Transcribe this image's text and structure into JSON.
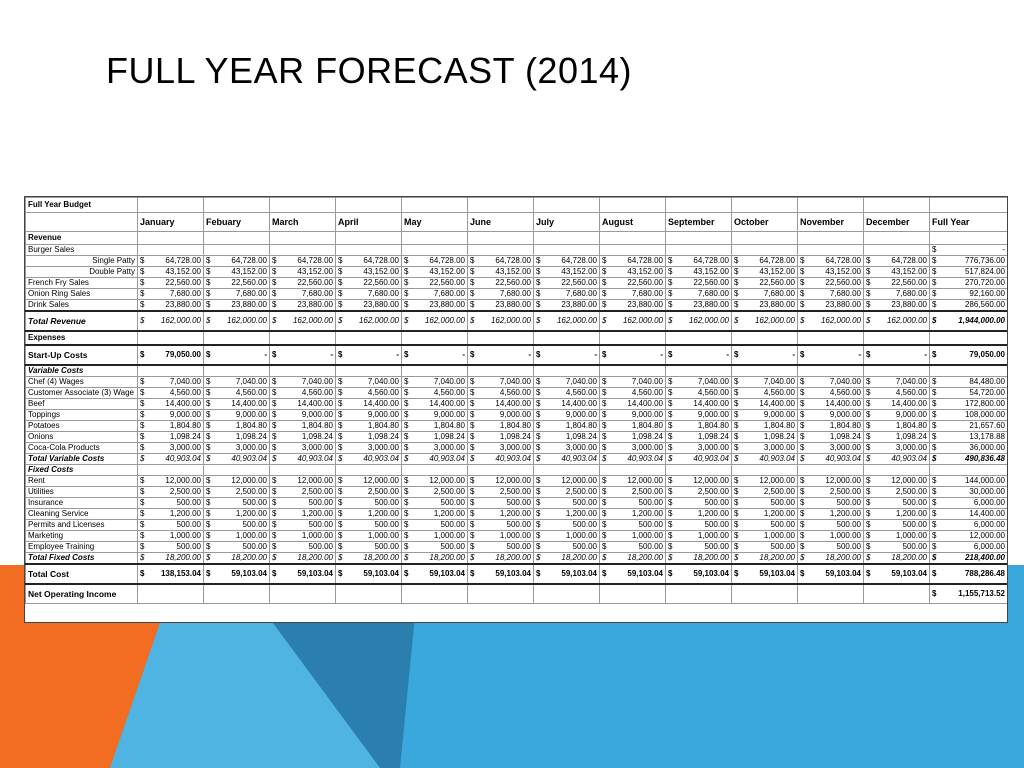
{
  "slide": {
    "title": "FULL YEAR FORECAST (2014)"
  },
  "sheet": {
    "title": "Full Year Budget",
    "months": [
      "January",
      "Febuary",
      "March",
      "April",
      "May",
      "June",
      "July",
      "August",
      "September",
      "October",
      "November",
      "December"
    ],
    "full_year_label": "Full Year",
    "currency_symbol": "$",
    "rows": [
      {
        "label": "Revenue",
        "kind": "section"
      },
      {
        "label": "Burger Sales",
        "kind": "plain",
        "months": [
          "",
          "",
          "",
          "",
          "",
          "",
          "",
          "",
          "",
          "",
          "",
          ""
        ],
        "full_year": "-"
      },
      {
        "label": "Single Patty",
        "kind": "plain",
        "align": "right",
        "months": [
          "64,728.00",
          "64,728.00",
          "64,728.00",
          "64,728.00",
          "64,728.00",
          "64,728.00",
          "64,728.00",
          "64,728.00",
          "64,728.00",
          "64,728.00",
          "64,728.00",
          "64,728.00"
        ],
        "full_year": "776,736.00"
      },
      {
        "label": "Double Patty",
        "kind": "plain",
        "align": "right",
        "months": [
          "43,152.00",
          "43,152.00",
          "43,152.00",
          "43,152.00",
          "43,152.00",
          "43,152.00",
          "43,152.00",
          "43,152.00",
          "43,152.00",
          "43,152.00",
          "43,152.00",
          "43,152.00"
        ],
        "full_year": "517,824.00"
      },
      {
        "label": "French Fry Sales",
        "kind": "plain",
        "months": [
          "22,560.00",
          "22,560.00",
          "22,560.00",
          "22,560.00",
          "22,560.00",
          "22,560.00",
          "22,560.00",
          "22,560.00",
          "22,560.00",
          "22,560.00",
          "22,560.00",
          "22,560.00"
        ],
        "full_year": "270,720.00"
      },
      {
        "label": "Onion Ring Sales",
        "kind": "plain",
        "months": [
          "7,680.00",
          "7,680.00",
          "7,680.00",
          "7,680.00",
          "7,680.00",
          "7,680.00",
          "7,680.00",
          "7,680.00",
          "7,680.00",
          "7,680.00",
          "7,680.00",
          "7,680.00"
        ],
        "full_year": "92,160.00"
      },
      {
        "label": "Drink Sales",
        "kind": "plain",
        "months": [
          "23,880.00",
          "23,880.00",
          "23,880.00",
          "23,880.00",
          "23,880.00",
          "23,880.00",
          "23,880.00",
          "23,880.00",
          "23,880.00",
          "23,880.00",
          "23,880.00",
          "23,880.00"
        ],
        "full_year": "286,560.00"
      },
      {
        "label": "Total Revenue",
        "kind": "italic-total",
        "months": [
          "162,000.00",
          "162,000.00",
          "162,000.00",
          "162,000.00",
          "162,000.00",
          "162,000.00",
          "162,000.00",
          "162,000.00",
          "162,000.00",
          "162,000.00",
          "162,000.00",
          "162,000.00"
        ],
        "full_year": "1,944,000.00"
      },
      {
        "label": "Expenses",
        "kind": "section"
      },
      {
        "label": "Start-Up Costs",
        "kind": "startup",
        "months": [
          "79,050.00",
          "-",
          "-",
          "-",
          "-",
          "-",
          "-",
          "-",
          "-",
          "-",
          "-",
          "-"
        ],
        "full_year": "79,050.00"
      },
      {
        "label": "Variable Costs",
        "kind": "subhead"
      },
      {
        "label": "Chef (4) Wages",
        "kind": "plain",
        "months": [
          "7,040.00",
          "7,040.00",
          "7,040.00",
          "7,040.00",
          "7,040.00",
          "7,040.00",
          "7,040.00",
          "7,040.00",
          "7,040.00",
          "7,040.00",
          "7,040.00",
          "7,040.00"
        ],
        "full_year": "84,480.00"
      },
      {
        "label": "Customer Associate (3) Wage",
        "kind": "plain",
        "months": [
          "4,560.00",
          "4,560.00",
          "4,560.00",
          "4,560.00",
          "4,560.00",
          "4,560.00",
          "4,560.00",
          "4,560.00",
          "4,560.00",
          "4,560.00",
          "4,560.00",
          "4,560.00"
        ],
        "full_year": "54,720.00"
      },
      {
        "label": "Beef",
        "kind": "plain",
        "months": [
          "14,400.00",
          "14,400.00",
          "14,400.00",
          "14,400.00",
          "14,400.00",
          "14,400.00",
          "14,400.00",
          "14,400.00",
          "14,400.00",
          "14,400.00",
          "14,400.00",
          "14,400.00"
        ],
        "full_year": "172,800.00"
      },
      {
        "label": "Toppings",
        "kind": "plain",
        "months": [
          "9,000.00",
          "9,000.00",
          "9,000.00",
          "9,000.00",
          "9,000.00",
          "9,000.00",
          "9,000.00",
          "9,000.00",
          "9,000.00",
          "9,000.00",
          "9,000.00",
          "9,000.00"
        ],
        "full_year": "108,000.00"
      },
      {
        "label": "Potatoes",
        "kind": "plain",
        "months": [
          "1,804.80",
          "1,804.80",
          "1,804.80",
          "1,804.80",
          "1,804.80",
          "1,804.80",
          "1,804.80",
          "1,804.80",
          "1,804.80",
          "1,804.80",
          "1,804.80",
          "1,804.80"
        ],
        "full_year": "21,657.60"
      },
      {
        "label": "Onions",
        "kind": "plain",
        "months": [
          "1,098.24",
          "1,098.24",
          "1,098.24",
          "1,098.24",
          "1,098.24",
          "1,098.24",
          "1,098.24",
          "1,098.24",
          "1,098.24",
          "1,098.24",
          "1,098.24",
          "1,098.24"
        ],
        "full_year": "13,178.88"
      },
      {
        "label": "Coca-Cola Products",
        "kind": "plain",
        "months": [
          "3,000.00",
          "3,000.00",
          "3,000.00",
          "3,000.00",
          "3,000.00",
          "3,000.00",
          "3,000.00",
          "3,000.00",
          "3,000.00",
          "3,000.00",
          "3,000.00",
          "3,000.00"
        ],
        "full_year": "36,000.00"
      },
      {
        "label": "Total Variable Costs",
        "kind": "italic-subtotal",
        "months": [
          "40,903.04",
          "40,903.04",
          "40,903.04",
          "40,903.04",
          "40,903.04",
          "40,903.04",
          "40,903.04",
          "40,903.04",
          "40,903.04",
          "40,903.04",
          "40,903.04",
          "40,903.04"
        ],
        "full_year": "490,836.48"
      },
      {
        "label": "Fixed Costs",
        "kind": "subhead"
      },
      {
        "label": "Rent",
        "kind": "plain",
        "months": [
          "12,000.00",
          "12,000.00",
          "12,000.00",
          "12,000.00",
          "12,000.00",
          "12,000.00",
          "12,000.00",
          "12,000.00",
          "12,000.00",
          "12,000.00",
          "12,000.00",
          "12,000.00"
        ],
        "full_year": "144,000.00"
      },
      {
        "label": "Utilities",
        "kind": "plain",
        "months": [
          "2,500.00",
          "2,500.00",
          "2,500.00",
          "2,500.00",
          "2,500.00",
          "2,500.00",
          "2,500.00",
          "2,500.00",
          "2,500.00",
          "2,500.00",
          "2,500.00",
          "2,500.00"
        ],
        "full_year": "30,000.00"
      },
      {
        "label": "Insurance",
        "kind": "plain",
        "months": [
          "500.00",
          "500.00",
          "500.00",
          "500.00",
          "500.00",
          "500.00",
          "500.00",
          "500.00",
          "500.00",
          "500.00",
          "500.00",
          "500.00"
        ],
        "full_year": "6,000.00"
      },
      {
        "label": "Cleaning Service",
        "kind": "plain",
        "months": [
          "1,200.00",
          "1,200.00",
          "1,200.00",
          "1,200.00",
          "1,200.00",
          "1,200.00",
          "1,200.00",
          "1,200.00",
          "1,200.00",
          "1,200.00",
          "1,200.00",
          "1,200.00"
        ],
        "full_year": "14,400.00"
      },
      {
        "label": "Permits and Licenses",
        "kind": "plain",
        "months": [
          "500.00",
          "500.00",
          "500.00",
          "500.00",
          "500.00",
          "500.00",
          "500.00",
          "500.00",
          "500.00",
          "500.00",
          "500.00",
          "500.00"
        ],
        "full_year": "6,000.00"
      },
      {
        "label": "Marketing",
        "kind": "plain",
        "months": [
          "1,000.00",
          "1,000.00",
          "1,000.00",
          "1,000.00",
          "1,000.00",
          "1,000.00",
          "1,000.00",
          "1,000.00",
          "1,000.00",
          "1,000.00",
          "1,000.00",
          "1,000.00"
        ],
        "full_year": "12,000.00"
      },
      {
        "label": "Employee Training",
        "kind": "plain",
        "months": [
          "500.00",
          "500.00",
          "500.00",
          "500.00",
          "500.00",
          "500.00",
          "500.00",
          "500.00",
          "500.00",
          "500.00",
          "500.00",
          "500.00"
        ],
        "full_year": "6,000.00"
      },
      {
        "label": "Total Fixed Costs",
        "kind": "italic-subtotal",
        "months": [
          "18,200.00",
          "18,200.00",
          "18,200.00",
          "18,200.00",
          "18,200.00",
          "18,200.00",
          "18,200.00",
          "18,200.00",
          "18,200.00",
          "18,200.00",
          "18,200.00",
          "18,200.00"
        ],
        "full_year": "218,400.00"
      },
      {
        "label": "Total Cost",
        "kind": "total-bold",
        "months": [
          "138,153.04",
          "59,103.04",
          "59,103.04",
          "59,103.04",
          "59,103.04",
          "59,103.04",
          "59,103.04",
          "59,103.04",
          "59,103.04",
          "59,103.04",
          "59,103.04",
          "59,103.04"
        ],
        "full_year": "788,286.48"
      },
      {
        "label": "Net Operating Income",
        "kind": "net",
        "months": [
          "",
          "",
          "",
          "",
          "",
          "",
          "",
          "",
          "",
          "",
          "",
          ""
        ],
        "full_year": "1,155,713.52"
      }
    ]
  },
  "colors": {
    "orange": "#f26d21",
    "blue_light": "#3aa8dc",
    "blue_dark": "#2a7fae"
  }
}
